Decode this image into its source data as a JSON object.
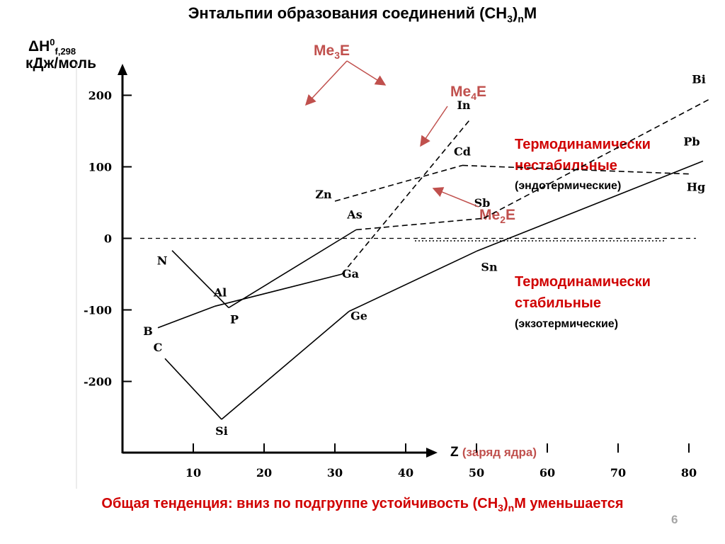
{
  "title": "Энтальпии образования соединений (CH",
  "title_sub": "3",
  "title_n": "n",
  "title_end": "M",
  "ylabel_main": "ΔH",
  "ylabel_sup": "0",
  "ylabel_sub": "f,298",
  "ylabel_units": "кДж/моль",
  "series_labels": {
    "me3": {
      "main": "Me",
      "sub": "3",
      "end": "E"
    },
    "me4": {
      "main": "Me",
      "sub": "4",
      "end": "E"
    },
    "me2": {
      "main": "Me",
      "sub": "2",
      "end": "E"
    }
  },
  "zones": {
    "unstable": {
      "line1": "Термодинамически",
      "line2": "нестабильные",
      "line3": "(эндотермические)"
    },
    "stable": {
      "line1": "Термодинамически",
      "line2": "стабильные",
      "line3": "(экзотермические)"
    }
  },
  "xlabel": {
    "z": "Z",
    "desc": "(заряд ядра)"
  },
  "footer": {
    "pre": "Общая тенденция: вниз по подгруппе устойчивость (CH",
    "sub1": "3",
    "sub2": "n",
    "post": "M уменьшается"
  },
  "page_number": "6",
  "colors": {
    "accent_red": "#d00000",
    "series_label": "#c0504d",
    "arrow": "#c0504d",
    "page_number": "#a6a6a6"
  },
  "chart_data": {
    "type": "line",
    "xlim": [
      0,
      85
    ],
    "ylim": [
      -300,
      240
    ],
    "x_ticks": [
      10,
      20,
      30,
      40,
      50,
      60,
      70,
      80
    ],
    "y_ticks": [
      200,
      100,
      0,
      -100,
      -200
    ],
    "y_tick_labels": [
      "200",
      "100",
      "0",
      "-100",
      "-200"
    ],
    "zero_line": true,
    "series": [
      {
        "key": "me3",
        "style": "mixed",
        "points": [
          {
            "label": "N",
            "x": 7,
            "y": -17,
            "dash": false
          },
          {
            "label": "P",
            "x": 15,
            "y": -97,
            "dash": false
          },
          {
            "label": "As",
            "x": 33,
            "y": 12,
            "dash": false
          },
          {
            "label": "Sb",
            "x": 51,
            "y": 28,
            "dash": true
          },
          {
            "label": "Bi",
            "x": 83,
            "y": 195,
            "dash": true
          }
        ]
      },
      {
        "key": "me3b",
        "style": "mixed",
        "points": [
          {
            "label": "B",
            "x": 5,
            "y": -125,
            "dash": false
          },
          {
            "label": "Al",
            "x": 13,
            "y": -95,
            "dash": false
          },
          {
            "label": "Ga",
            "x": 31,
            "y": -50,
            "dash": false
          },
          {
            "label": "In",
            "x": 49,
            "y": 165,
            "dash": true
          }
        ]
      },
      {
        "key": "me4",
        "style": "solid",
        "points": [
          {
            "label": "C",
            "x": 6,
            "y": -168
          },
          {
            "label": "Si",
            "x": 14,
            "y": -253
          },
          {
            "label": "Ge",
            "x": 32,
            "y": -102
          },
          {
            "label": "Sn",
            "x": 50,
            "y": -18
          },
          {
            "label": "Pb",
            "x": 82,
            "y": 108
          }
        ]
      },
      {
        "key": "me2",
        "style": "dashed",
        "points": [
          {
            "label": "Zn",
            "x": 30,
            "y": 52
          },
          {
            "label": "Cd",
            "x": 48,
            "y": 102
          },
          {
            "label": "Hg",
            "x": 80,
            "y": 90
          }
        ]
      }
    ]
  }
}
